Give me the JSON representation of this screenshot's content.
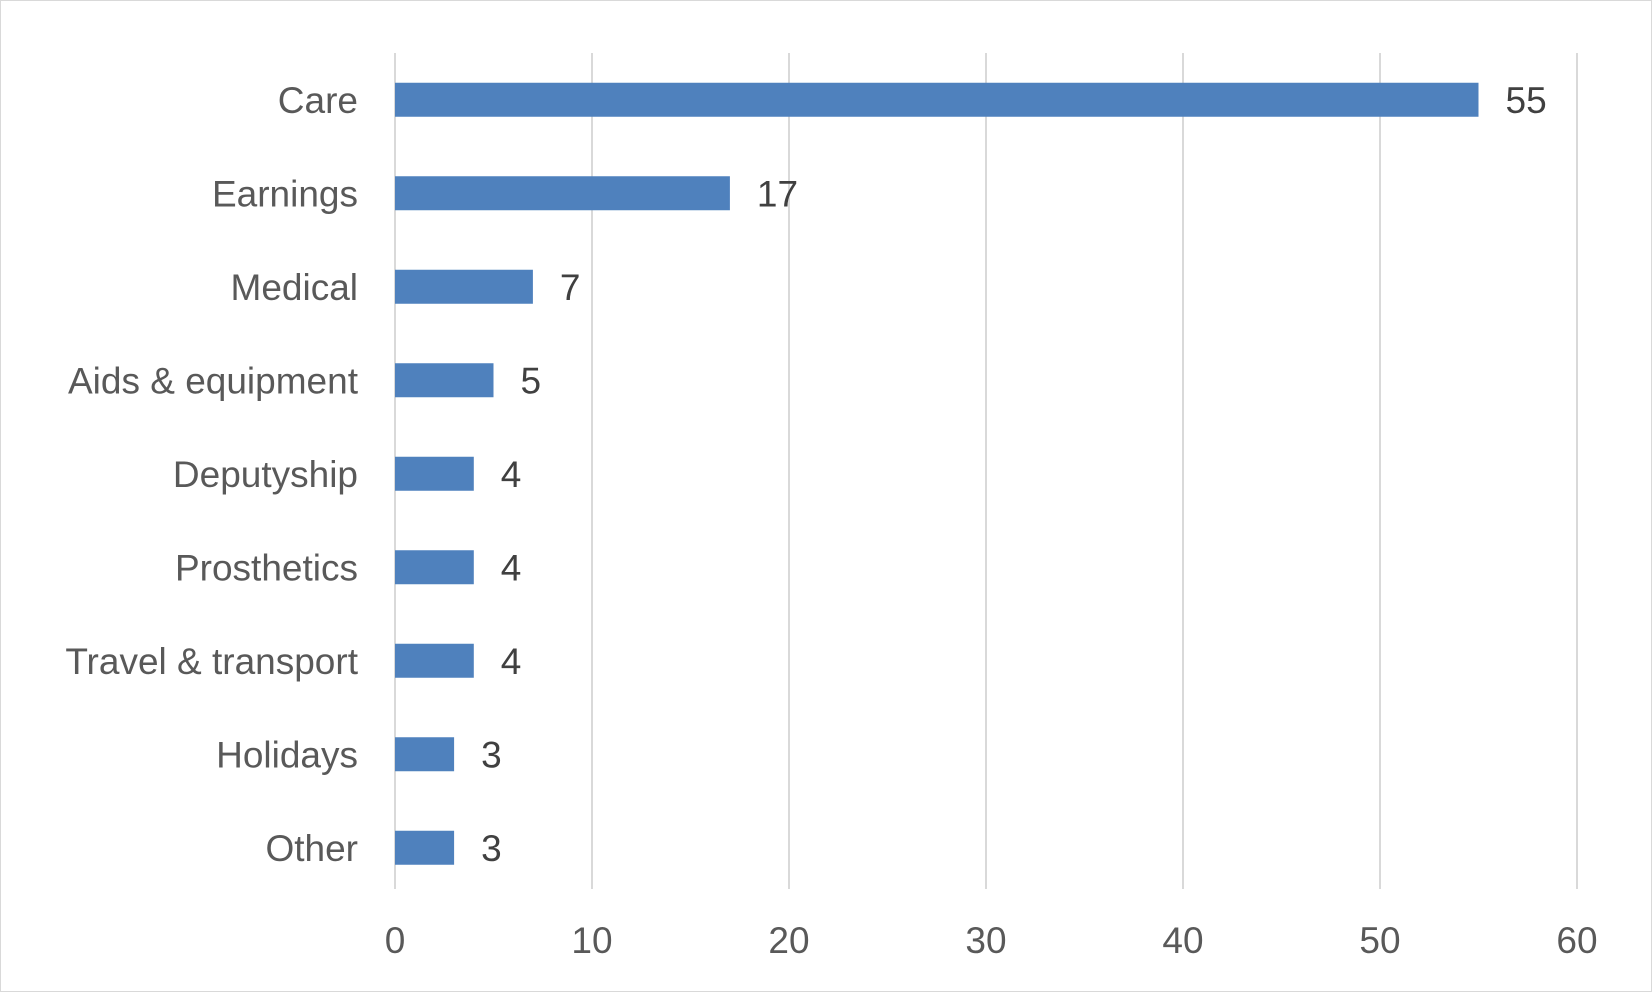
{
  "chart_data": {
    "type": "bar",
    "orientation": "horizontal",
    "title": "",
    "xlabel": "",
    "ylabel": "",
    "categories": [
      "Care",
      "Earnings",
      "Medical",
      "Aids & equipment",
      "Deputyship",
      "Prosthetics",
      "Travel & transport",
      "Holidays",
      "Other"
    ],
    "values": [
      55,
      17,
      7,
      5,
      4,
      4,
      4,
      3,
      3
    ],
    "xlim": [
      0,
      60
    ],
    "xticks": [
      0,
      10,
      20,
      30,
      40,
      50,
      60
    ],
    "grid": "vertical",
    "data_labels": true,
    "bar_color": "#4f81bd",
    "grid_color": "#d9d9d9"
  }
}
